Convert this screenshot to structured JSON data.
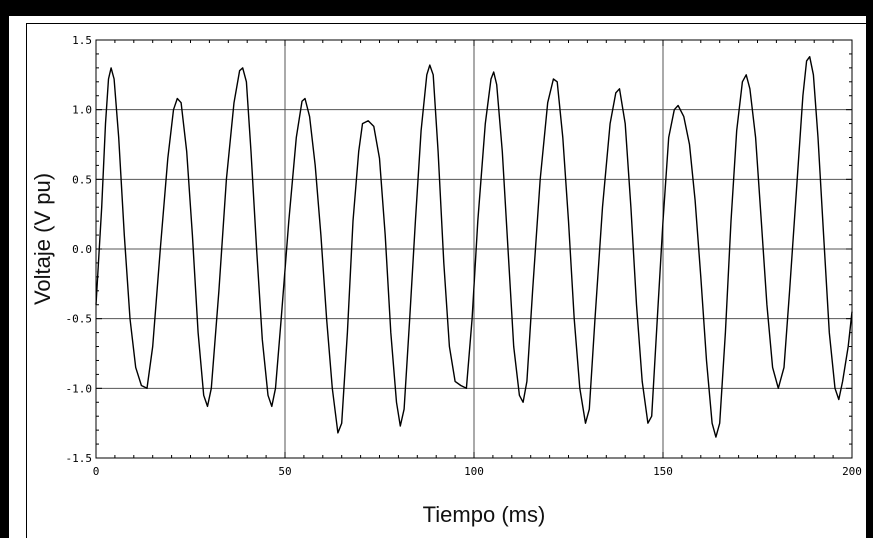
{
  "chart_data": {
    "type": "line",
    "title": "",
    "xlabel": "Tiempo (ms)",
    "ylabel": "Voltaje (V pu)",
    "xlim": [
      0,
      200
    ],
    "ylim": [
      -1.5,
      1.5
    ],
    "grid": true,
    "x_ticks": [
      0,
      50,
      100,
      150,
      200
    ],
    "x_tick_labels": [
      "0",
      "50",
      "100",
      "150",
      "200"
    ],
    "y_ticks": [
      1.5,
      1.0,
      0.5,
      0.0,
      -0.5,
      -1.0,
      -1.5
    ],
    "y_tick_labels": [
      "1.5",
      "1.0",
      "0.5",
      "0.0",
      "-0.5",
      "-1.0",
      "-1.5"
    ],
    "series": [
      {
        "color": "#000000",
        "points": [
          [
            0.0,
            -0.4
          ],
          [
            1.5,
            0.3
          ],
          [
            2.5,
            0.9
          ],
          [
            3.3,
            1.22
          ],
          [
            4.0,
            1.3
          ],
          [
            4.8,
            1.22
          ],
          [
            6.0,
            0.8
          ],
          [
            7.5,
            0.1
          ],
          [
            9.0,
            -0.5
          ],
          [
            10.5,
            -0.85
          ],
          [
            12.0,
            -0.98
          ],
          [
            13.5,
            -1.0
          ],
          [
            15.0,
            -0.7
          ],
          [
            17.0,
            0.0
          ],
          [
            19.0,
            0.65
          ],
          [
            20.5,
            1.0
          ],
          [
            21.5,
            1.08
          ],
          [
            22.5,
            1.05
          ],
          [
            24.0,
            0.7
          ],
          [
            25.5,
            0.1
          ],
          [
            27.0,
            -0.6
          ],
          [
            28.5,
            -1.05
          ],
          [
            29.5,
            -1.13
          ],
          [
            30.5,
            -1.0
          ],
          [
            32.5,
            -0.3
          ],
          [
            34.5,
            0.5
          ],
          [
            36.5,
            1.05
          ],
          [
            38.0,
            1.28
          ],
          [
            38.8,
            1.3
          ],
          [
            39.8,
            1.2
          ],
          [
            41.0,
            0.7
          ],
          [
            42.5,
            0.0
          ],
          [
            44.0,
            -0.65
          ],
          [
            45.5,
            -1.05
          ],
          [
            46.5,
            -1.13
          ],
          [
            47.5,
            -1.0
          ],
          [
            49.0,
            -0.5
          ],
          [
            51.0,
            0.2
          ],
          [
            53.0,
            0.8
          ],
          [
            54.5,
            1.06
          ],
          [
            55.3,
            1.08
          ],
          [
            56.5,
            0.95
          ],
          [
            58.0,
            0.6
          ],
          [
            59.5,
            0.1
          ],
          [
            61.0,
            -0.5
          ],
          [
            62.5,
            -1.0
          ],
          [
            64.0,
            -1.32
          ],
          [
            65.0,
            -1.25
          ],
          [
            66.5,
            -0.6
          ],
          [
            68.0,
            0.2
          ],
          [
            69.5,
            0.7
          ],
          [
            70.5,
            0.9
          ],
          [
            72.0,
            0.92
          ],
          [
            73.5,
            0.88
          ],
          [
            75.0,
            0.65
          ],
          [
            76.5,
            0.1
          ],
          [
            78.0,
            -0.6
          ],
          [
            79.5,
            -1.1
          ],
          [
            80.5,
            -1.27
          ],
          [
            81.5,
            -1.15
          ],
          [
            83.0,
            -0.5
          ],
          [
            84.5,
            0.2
          ],
          [
            86.0,
            0.85
          ],
          [
            87.5,
            1.25
          ],
          [
            88.3,
            1.32
          ],
          [
            89.2,
            1.25
          ],
          [
            90.5,
            0.7
          ],
          [
            92.0,
            -0.1
          ],
          [
            93.5,
            -0.7
          ],
          [
            95.0,
            -0.95
          ],
          [
            96.5,
            -0.98
          ],
          [
            98.0,
            -1.0
          ],
          [
            99.5,
            -0.5
          ],
          [
            101.0,
            0.2
          ],
          [
            103.0,
            0.9
          ],
          [
            104.5,
            1.22
          ],
          [
            105.2,
            1.27
          ],
          [
            106.0,
            1.18
          ],
          [
            107.5,
            0.7
          ],
          [
            109.0,
            0.0
          ],
          [
            110.5,
            -0.7
          ],
          [
            112.0,
            -1.05
          ],
          [
            113.0,
            -1.1
          ],
          [
            114.0,
            -0.95
          ],
          [
            115.5,
            -0.3
          ],
          [
            117.5,
            0.5
          ],
          [
            119.5,
            1.05
          ],
          [
            121.0,
            1.22
          ],
          [
            122.0,
            1.2
          ],
          [
            123.5,
            0.8
          ],
          [
            125.0,
            0.2
          ],
          [
            126.5,
            -0.5
          ],
          [
            128.0,
            -1.0
          ],
          [
            129.5,
            -1.25
          ],
          [
            130.5,
            -1.15
          ],
          [
            132.0,
            -0.5
          ],
          [
            134.0,
            0.3
          ],
          [
            136.0,
            0.9
          ],
          [
            137.5,
            1.12
          ],
          [
            138.5,
            1.15
          ],
          [
            140.0,
            0.9
          ],
          [
            141.5,
            0.3
          ],
          [
            143.0,
            -0.4
          ],
          [
            144.5,
            -0.95
          ],
          [
            146.0,
            -1.25
          ],
          [
            147.0,
            -1.2
          ],
          [
            148.5,
            -0.5
          ],
          [
            150.0,
            0.2
          ],
          [
            151.5,
            0.8
          ],
          [
            153.0,
            1.0
          ],
          [
            154.0,
            1.03
          ],
          [
            155.5,
            0.95
          ],
          [
            157.0,
            0.75
          ],
          [
            158.5,
            0.35
          ],
          [
            160.0,
            -0.2
          ],
          [
            161.5,
            -0.8
          ],
          [
            163.0,
            -1.25
          ],
          [
            164.0,
            -1.35
          ],
          [
            165.0,
            -1.25
          ],
          [
            166.5,
            -0.6
          ],
          [
            168.0,
            0.2
          ],
          [
            169.5,
            0.85
          ],
          [
            171.0,
            1.2
          ],
          [
            172.0,
            1.25
          ],
          [
            173.0,
            1.15
          ],
          [
            174.5,
            0.8
          ],
          [
            176.0,
            0.2
          ],
          [
            177.5,
            -0.4
          ],
          [
            179.0,
            -0.85
          ],
          [
            180.5,
            -1.0
          ],
          [
            182.0,
            -0.85
          ],
          [
            183.5,
            -0.3
          ],
          [
            185.5,
            0.5
          ],
          [
            187.0,
            1.1
          ],
          [
            188.0,
            1.35
          ],
          [
            188.8,
            1.38
          ],
          [
            189.8,
            1.25
          ],
          [
            191.0,
            0.8
          ],
          [
            192.5,
            0.1
          ],
          [
            194.0,
            -0.6
          ],
          [
            195.5,
            -1.0
          ],
          [
            196.5,
            -1.08
          ],
          [
            197.5,
            -0.95
          ],
          [
            199.0,
            -0.7
          ],
          [
            200.0,
            -0.45
          ]
        ]
      }
    ]
  }
}
